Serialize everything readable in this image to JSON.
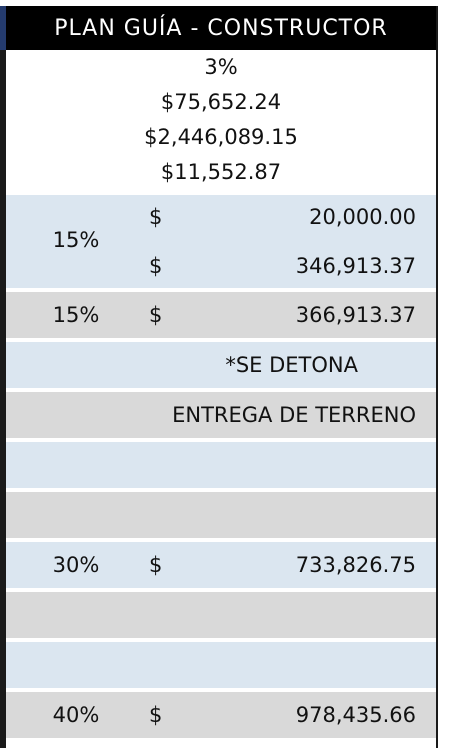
{
  "header": {
    "title": "PLAN GUÍA - CONSTRUCTOR"
  },
  "summary": {
    "line1": "3%",
    "line2": "$75,652.24",
    "line3": "$2,446,089.15",
    "line4": "$11,552.87"
  },
  "rows": {
    "enganche": {
      "percent": "15%",
      "currency1": "$",
      "amount1": "20,000.00",
      "currency2": "$",
      "amount2": "346,913.37"
    },
    "total15": {
      "percent": "15%",
      "currency": "$",
      "amount": "366,913.37"
    },
    "note1": {
      "text": "*SE DETONA"
    },
    "note2": {
      "text": "ENTREGA DE TERRENO"
    },
    "pago30": {
      "percent": "30%",
      "currency": "$",
      "amount": "733,826.75"
    },
    "pago40": {
      "percent": "40%",
      "currency": "$",
      "amount": "978,435.66"
    }
  },
  "colors": {
    "header_bg": "#000000",
    "row_blue": "#dbe6f0",
    "row_gray": "#d9d9d9"
  }
}
